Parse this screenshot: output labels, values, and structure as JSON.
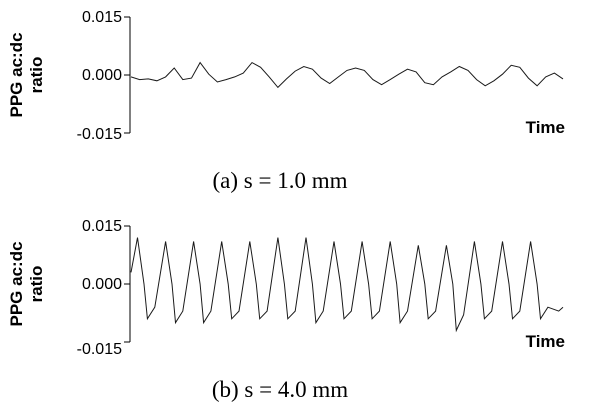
{
  "chart_data": [
    {
      "type": "line",
      "caption": "(a) s = 1.0 mm",
      "ylabel_line1": "PPG ac:dc",
      "ylabel_line2": "ratio",
      "xlabel": "Time",
      "ylim": [
        -0.015,
        0.015
      ],
      "yticks": [
        "0.015",
        "0.000",
        "-0.015"
      ],
      "ytick_values": [
        0.015,
        0.0,
        -0.015
      ],
      "series": [
        {
          "x": [
            0,
            2,
            4,
            6,
            8,
            10,
            12,
            14,
            16,
            18,
            20,
            22,
            24,
            26,
            28,
            30,
            32,
            34,
            36,
            38,
            40,
            42,
            44,
            46,
            48,
            50,
            52,
            54,
            56,
            58,
            60,
            62,
            64,
            66,
            68,
            70,
            72,
            74,
            76,
            78,
            80,
            82,
            84,
            86,
            88,
            90,
            92,
            94,
            96,
            98,
            100
          ],
          "values": [
            -0.0005,
            -0.0012,
            -0.001,
            -0.0015,
            -0.0005,
            0.0018,
            -0.0012,
            -0.0008,
            0.0032,
            0.0002,
            -0.0018,
            -0.0012,
            -0.0005,
            0.0005,
            0.0032,
            0.002,
            -0.0005,
            -0.0032,
            -0.001,
            0.001,
            0.0022,
            0.0015,
            -0.0008,
            -0.0022,
            -0.0005,
            0.0012,
            0.0018,
            0.0012,
            -0.0012,
            -0.0025,
            -0.0012,
            0.0002,
            0.0015,
            0.0008,
            -0.002,
            -0.0025,
            -0.0005,
            0.0008,
            0.0022,
            0.0012,
            -0.0012,
            -0.0028,
            -0.0015,
            0.0002,
            0.0025,
            0.002,
            -0.0008,
            -0.0028,
            -0.0005,
            0.0005,
            -0.001
          ]
        }
      ]
    },
    {
      "type": "line",
      "caption": "(b) s = 4.0 mm",
      "ylabel_line1": "PPG ac:dc",
      "ylabel_line2": "ratio",
      "xlabel": "Time",
      "ylim": [
        -0.015,
        0.015
      ],
      "yticks": [
        "0.015",
        "0.000",
        "-0.015"
      ],
      "ytick_values": [
        0.015,
        0.0,
        -0.015
      ],
      "series": [
        {
          "x": [
            0,
            1.5,
            3.0,
            3.8,
            5.5,
            8.0,
            9.5,
            10.3,
            12.0,
            14.5,
            16.0,
            16.8,
            18.5,
            21.0,
            22.5,
            23.3,
            25.0,
            27.5,
            29.0,
            29.8,
            31.5,
            34.0,
            35.5,
            36.3,
            38.0,
            40.5,
            42.0,
            42.8,
            44.5,
            47.0,
            48.5,
            49.3,
            51.0,
            53.5,
            55.0,
            55.8,
            57.5,
            60.0,
            61.5,
            62.3,
            64.0,
            66.5,
            68.0,
            68.8,
            70.5,
            73.0,
            74.5,
            75.3,
            77.0,
            79.5,
            81.0,
            81.8,
            83.5,
            86.0,
            87.5,
            88.3,
            90.0,
            92.5,
            94.0,
            94.8,
            96.5,
            99.0,
            100.0
          ],
          "values": [
            0.003,
            0.012,
            0.0,
            -0.009,
            -0.006,
            0.011,
            0.0,
            -0.01,
            -0.007,
            0.011,
            0.0,
            -0.01,
            -0.007,
            0.011,
            0.0,
            -0.009,
            -0.007,
            0.011,
            0.0,
            -0.009,
            -0.007,
            0.012,
            0.0,
            -0.009,
            -0.007,
            0.012,
            0.0,
            -0.01,
            -0.007,
            0.011,
            0.0,
            -0.009,
            -0.007,
            0.011,
            0.0,
            -0.009,
            -0.007,
            0.011,
            0.0,
            -0.01,
            -0.007,
            0.01,
            0.0,
            -0.009,
            -0.007,
            0.01,
            0.0,
            -0.012,
            -0.008,
            0.011,
            0.0,
            -0.009,
            -0.007,
            0.011,
            0.0,
            -0.009,
            -0.007,
            0.011,
            0.0,
            -0.009,
            -0.006,
            -0.007,
            -0.006
          ]
        }
      ]
    }
  ]
}
